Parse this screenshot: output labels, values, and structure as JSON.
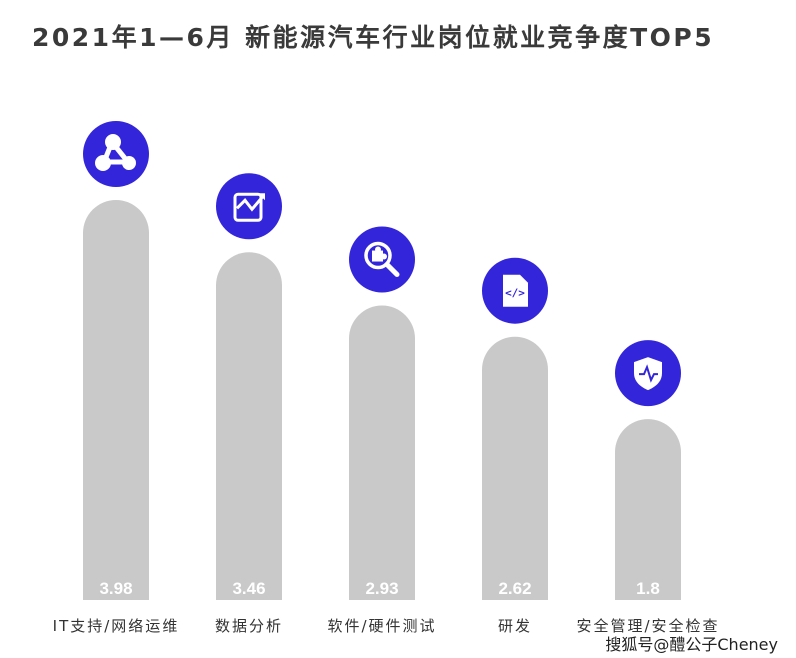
{
  "watermark": "搜狐号@醴公子Cheney",
  "colors": {
    "bar": "#c9c9c9",
    "icon_bg": "#3325d9",
    "value_text": "#ffffff"
  },
  "chart_data": {
    "type": "bar",
    "title": "2021年1—6月 新能源汽车行业岗位就业竞争度TOP5",
    "categories": [
      "IT支持/网络运维",
      "数据分析",
      "软件/硬件测试",
      "研发",
      "安全管理/安全检查"
    ],
    "values": [
      3.98,
      3.46,
      2.93,
      2.62,
      1.8
    ],
    "value_labels": [
      "3.98",
      "3.46",
      "2.93",
      "2.62",
      "1.8"
    ],
    "icons": [
      "share-network-icon",
      "line-chart-icon",
      "search-puzzle-icon",
      "code-file-icon",
      "shield-pulse-icon"
    ],
    "xlabel": "",
    "ylabel": "",
    "grid": false,
    "legend": "none"
  }
}
